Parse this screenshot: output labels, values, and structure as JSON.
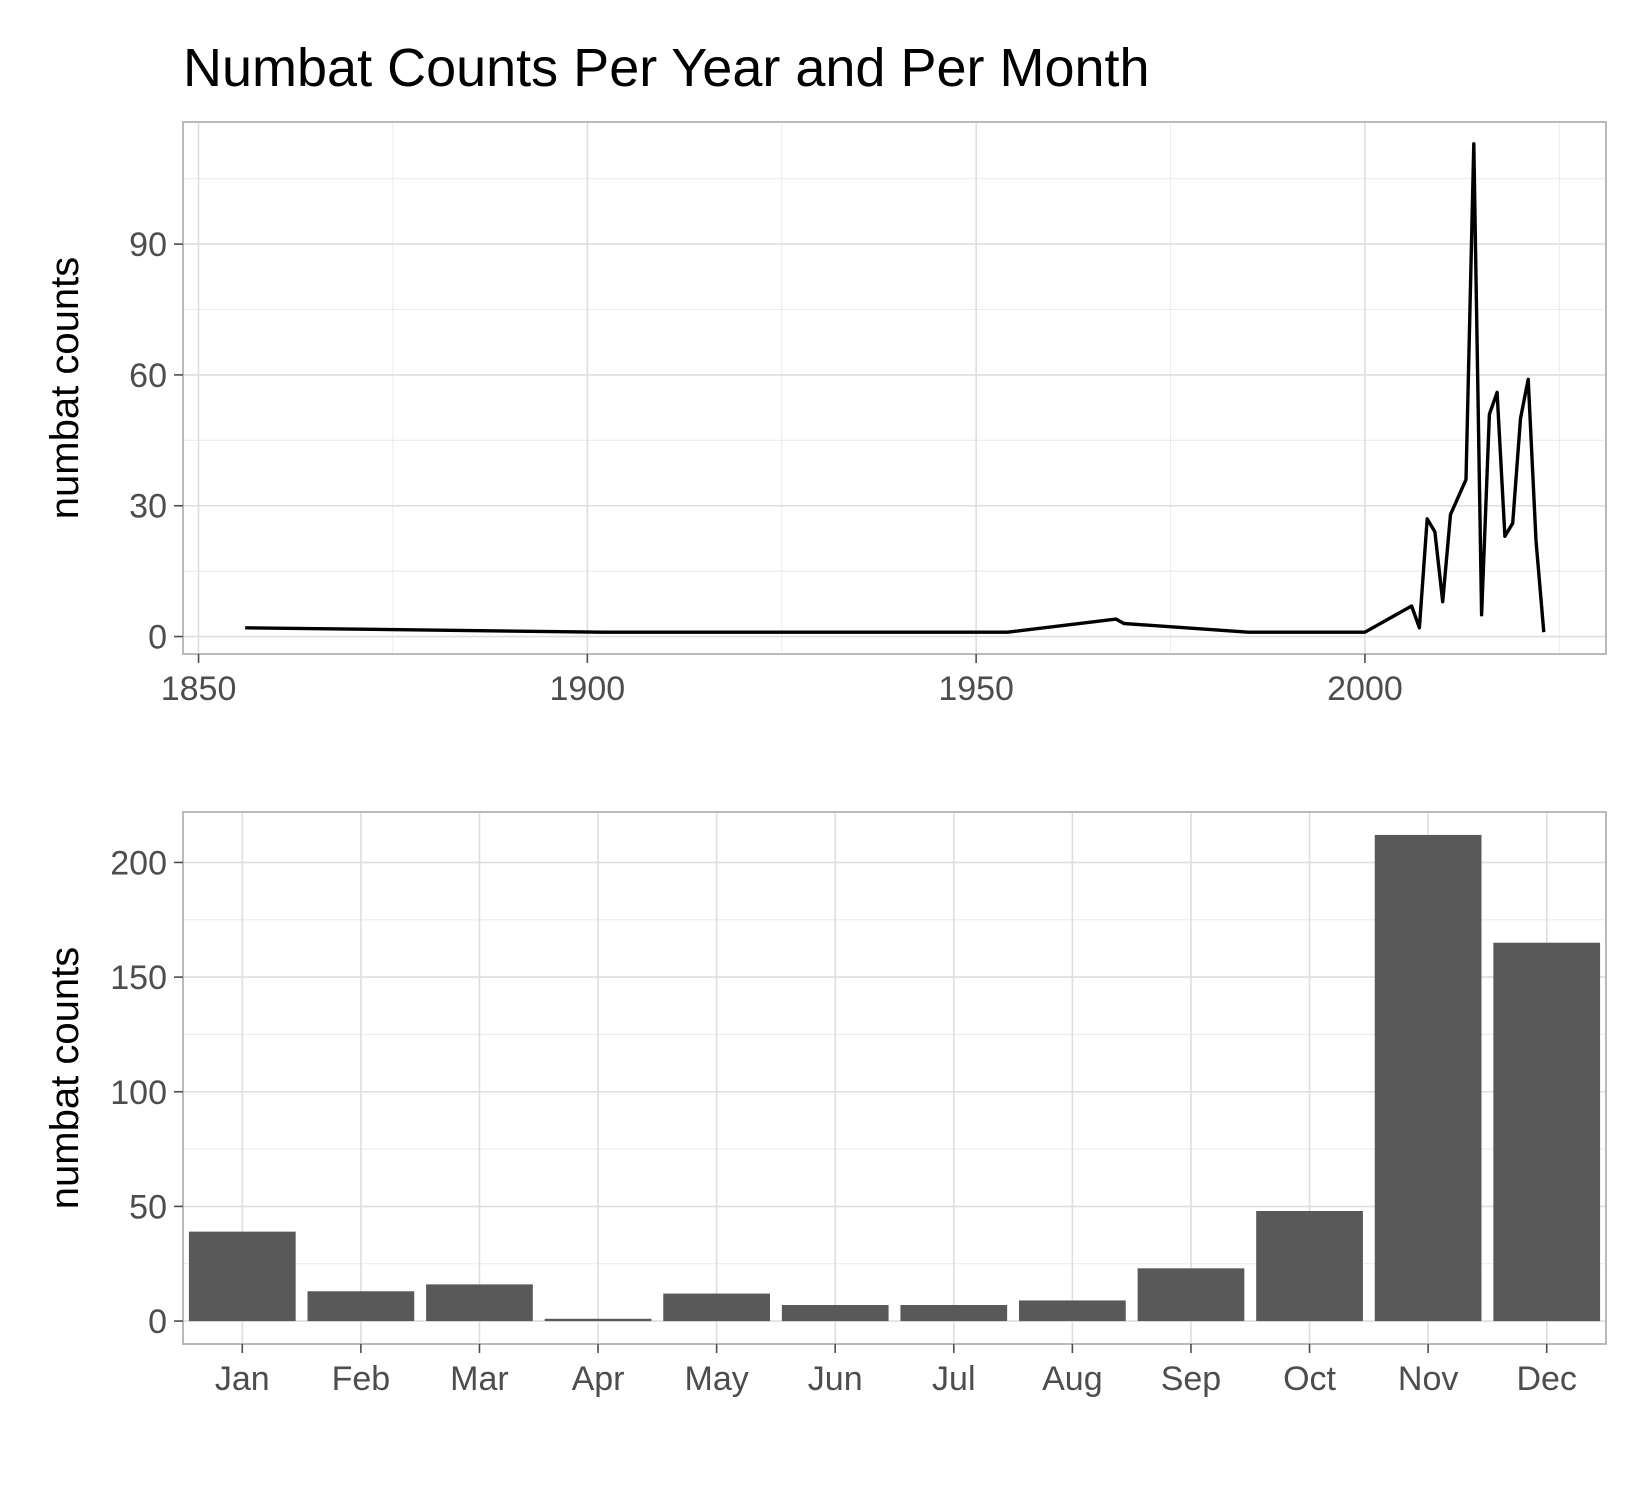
{
  "title": "Numbat Counts Per Year and Per Month",
  "colors": {
    "line": "#000000",
    "bar": "#595959",
    "grid": "#dedede",
    "panel_border": "#b3b3b3",
    "tick_text": "#4d4d4d"
  },
  "chart_data": [
    {
      "type": "line",
      "title": "Numbat Counts Per Year and Per Month",
      "xlabel": "",
      "ylabel": "numbat counts",
      "xlim": [
        1848,
        2031
      ],
      "ylim": [
        -4,
        118
      ],
      "x_ticks": [
        1850,
        1900,
        1950,
        2000
      ],
      "y_ticks": [
        0,
        30,
        60,
        90
      ],
      "grid": true,
      "series": [
        {
          "x": [
            1856,
            1902,
            1954,
            1968,
            1969,
            1985,
            2000,
            2006,
            2007,
            2008,
            2009,
            2010,
            2011,
            2013,
            2014,
            2015,
            2016,
            2017,
            2018,
            2019,
            2020,
            2021,
            2022,
            2023
          ],
          "y": [
            2,
            1,
            1,
            4,
            3,
            1,
            1,
            7,
            2,
            27,
            24,
            8,
            28,
            36,
            113,
            5,
            51,
            56,
            23,
            26,
            50,
            59,
            22,
            1
          ]
        }
      ]
    },
    {
      "type": "bar",
      "xlabel": "",
      "ylabel": "numbat counts",
      "categories": [
        "Jan",
        "Feb",
        "Mar",
        "Apr",
        "May",
        "Jun",
        "Jul",
        "Aug",
        "Sep",
        "Oct",
        "Nov",
        "Dec"
      ],
      "values": [
        39,
        13,
        16,
        1,
        12,
        7,
        7,
        9,
        23,
        48,
        212,
        165
      ],
      "ylim": [
        -10,
        222
      ],
      "y_ticks": [
        0,
        50,
        100,
        150,
        200
      ],
      "grid": true
    }
  ]
}
